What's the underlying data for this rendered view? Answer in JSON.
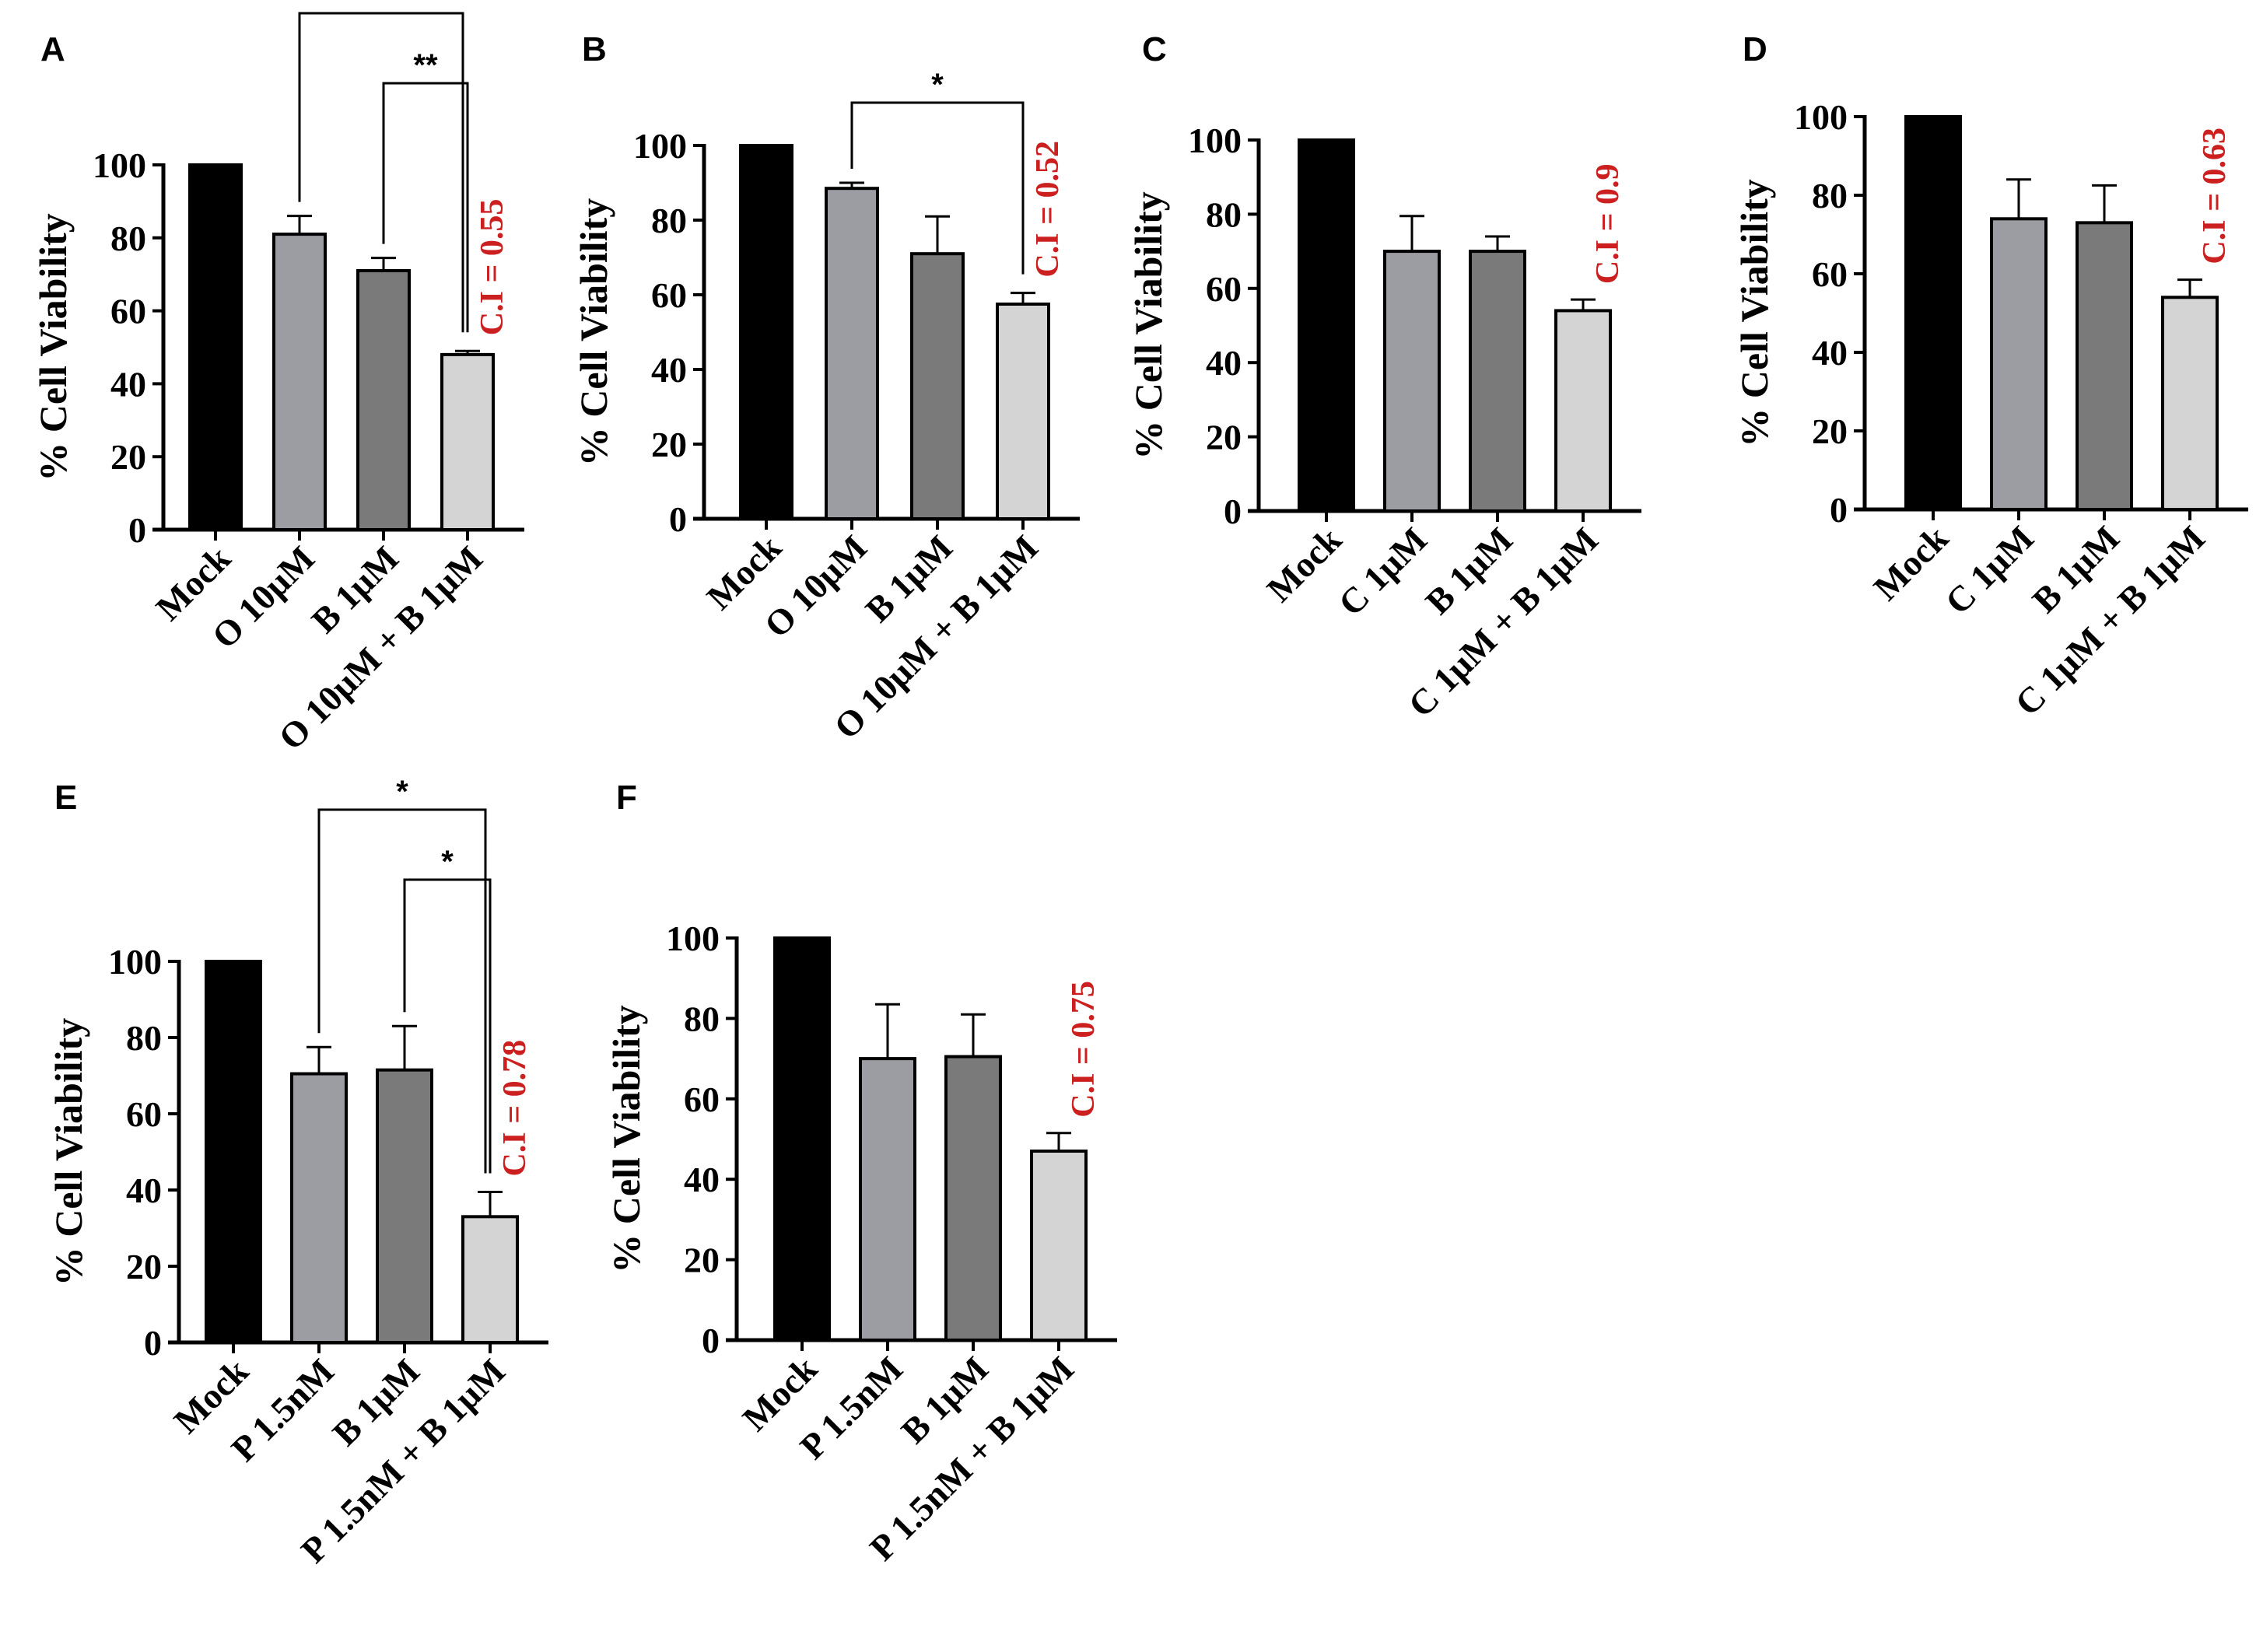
{
  "y_axis_label": "% Cell Viability",
  "colors": {
    "Mock": "#000000",
    "drug_a": "#9c9ca3",
    "drug_b": "#7a7a7a",
    "combo": "#d4d4d4",
    "ci_text": "#cc1f1f"
  },
  "chart_data": [
    {
      "panel": "A",
      "type": "bar",
      "categories": [
        "Mock",
        "O 10µM",
        "B 1µM",
        "O 10µM + B 1µM"
      ],
      "values": [
        100,
        81,
        71,
        48
      ],
      "errors": [
        0,
        5,
        3.5,
        1
      ],
      "ylim": [
        0,
        100
      ],
      "yticks": [
        0,
        20,
        40,
        60,
        80,
        100
      ],
      "ylabel": "% Cell Viability",
      "annotation": "C.I = 0.55",
      "significance": [
        {
          "from": 1,
          "to": 3,
          "label": "***"
        },
        {
          "from": 2,
          "to": 3,
          "label": "**"
        }
      ]
    },
    {
      "panel": "B",
      "type": "bar",
      "categories": [
        "Mock",
        "O 10µM",
        "B 1µM",
        "O 10µM + B 1µM"
      ],
      "values": [
        100,
        88.5,
        71,
        57.5
      ],
      "errors": [
        0,
        1.5,
        10,
        3
      ],
      "ylim": [
        0,
        100
      ],
      "yticks": [
        0,
        20,
        40,
        60,
        80,
        100
      ],
      "ylabel": "% Cell Viability",
      "annotation": "C.I = 0.52",
      "significance": [
        {
          "from": 1,
          "to": 3,
          "label": "*"
        }
      ]
    },
    {
      "panel": "C",
      "type": "bar",
      "categories": [
        "Mock",
        "C 1µM",
        "B 1µM",
        "C 1µM + B 1µM"
      ],
      "values": [
        100,
        70,
        70,
        54
      ],
      "errors": [
        0,
        9.5,
        4,
        3
      ],
      "ylim": [
        0,
        100
      ],
      "yticks": [
        0,
        20,
        40,
        60,
        80,
        100
      ],
      "ylabel": "% Cell Viability",
      "annotation": "C.I = 0.9",
      "significance": []
    },
    {
      "panel": "D",
      "type": "bar",
      "categories": [
        "Mock",
        "C 1µM",
        "B 1µM",
        "C 1µM + B 1µM"
      ],
      "values": [
        100,
        74,
        73,
        54
      ],
      "errors": [
        0,
        10,
        9.5,
        4.5
      ],
      "ylim": [
        0,
        100
      ],
      "yticks": [
        0,
        20,
        40,
        60,
        80,
        100
      ],
      "ylabel": "% Cell Viability",
      "annotation": "C.I = 0.63",
      "significance": []
    },
    {
      "panel": "E",
      "type": "bar",
      "categories": [
        "Mock",
        "P 1.5nM",
        "B 1µM",
        "P 1.5nM + B 1µM"
      ],
      "values": [
        100,
        70.5,
        71.5,
        33
      ],
      "errors": [
        0,
        7,
        11.5,
        6.5
      ],
      "ylim": [
        0,
        100
      ],
      "yticks": [
        0,
        20,
        40,
        60,
        80,
        100
      ],
      "ylabel": "% Cell Viability",
      "annotation": "C.I = 0.78",
      "significance": [
        {
          "from": 1,
          "to": 3,
          "label": "*"
        },
        {
          "from": 2,
          "to": 3,
          "label": "*"
        }
      ]
    },
    {
      "panel": "F",
      "type": "bar",
      "categories": [
        "Mock",
        "P 1.5nM",
        "B 1µM",
        "P 1.5nM + B 1µM"
      ],
      "values": [
        100,
        70,
        70.5,
        47
      ],
      "errors": [
        0,
        13.5,
        10.5,
        4.5
      ],
      "ylim": [
        0,
        100
      ],
      "yticks": [
        0,
        20,
        40,
        60,
        80,
        100
      ],
      "ylabel": "% Cell Viability",
      "annotation": "C.I = 0.75",
      "significance": []
    }
  ]
}
